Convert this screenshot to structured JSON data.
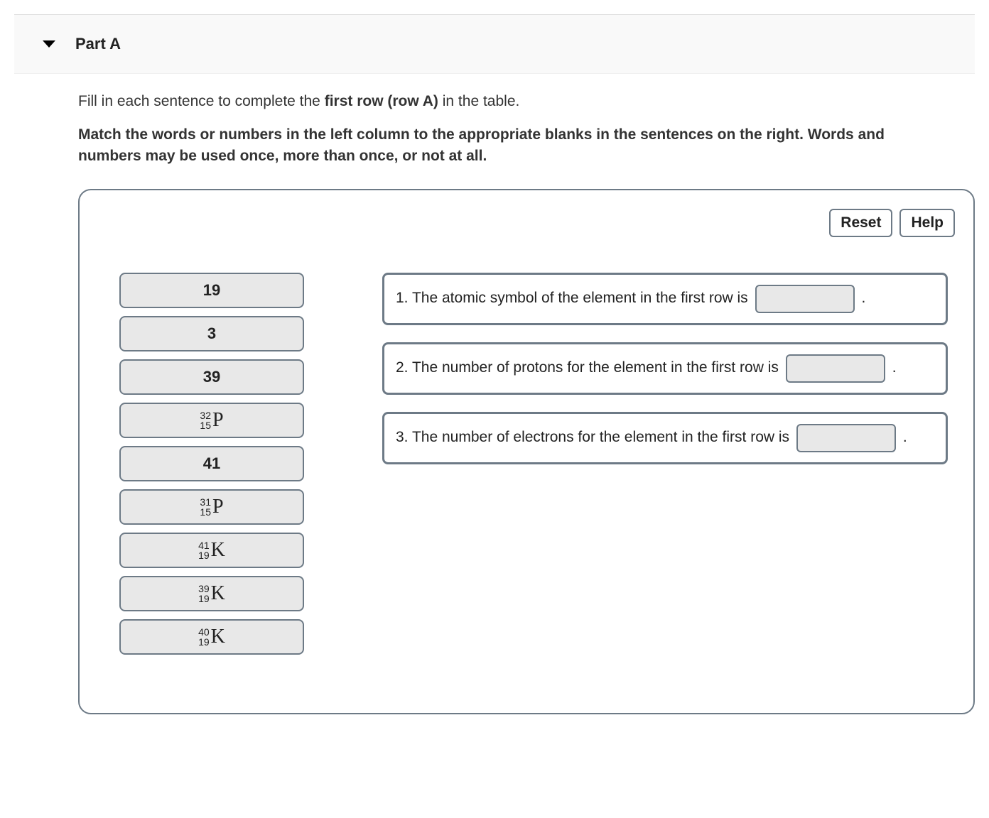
{
  "part": {
    "label": "Part A"
  },
  "instructions": {
    "intro_before": "Fill in each sentence to complete the ",
    "intro_bold": "first row (row A)",
    "intro_after": " in the table.",
    "match": "Match the words or numbers in the left column to the appropriate blanks in the sentences on the right. Words and numbers may be used once, more than once, or not at all."
  },
  "buttons": {
    "reset": "Reset",
    "help": "Help"
  },
  "colors": {
    "panel_border": "#6d7a86",
    "drag_bg": "#e8e8e8",
    "header_bg": "#f9f9f9"
  },
  "drag_items": [
    {
      "type": "plain",
      "label": "19"
    },
    {
      "type": "plain",
      "label": "3"
    },
    {
      "type": "plain",
      "label": "39"
    },
    {
      "type": "nuclide",
      "mass": "32",
      "atomic": "15",
      "symbol": "P"
    },
    {
      "type": "plain",
      "label": "41"
    },
    {
      "type": "nuclide",
      "mass": "31",
      "atomic": "15",
      "symbol": "P"
    },
    {
      "type": "nuclide",
      "mass": "41",
      "atomic": "19",
      "symbol": "K"
    },
    {
      "type": "nuclide",
      "mass": "39",
      "atomic": "19",
      "symbol": "K"
    },
    {
      "type": "nuclide",
      "mass": "40",
      "atomic": "19",
      "symbol": "K"
    }
  ],
  "sentences": [
    {
      "num": "1.",
      "before": "The atomic symbol of the element in the first row is",
      "after": "."
    },
    {
      "num": "2.",
      "before": "The number of protons for the element in the first row is",
      "after": "."
    },
    {
      "num": "3.",
      "before": "The number of electrons for the element in the first row is",
      "after": "."
    }
  ]
}
